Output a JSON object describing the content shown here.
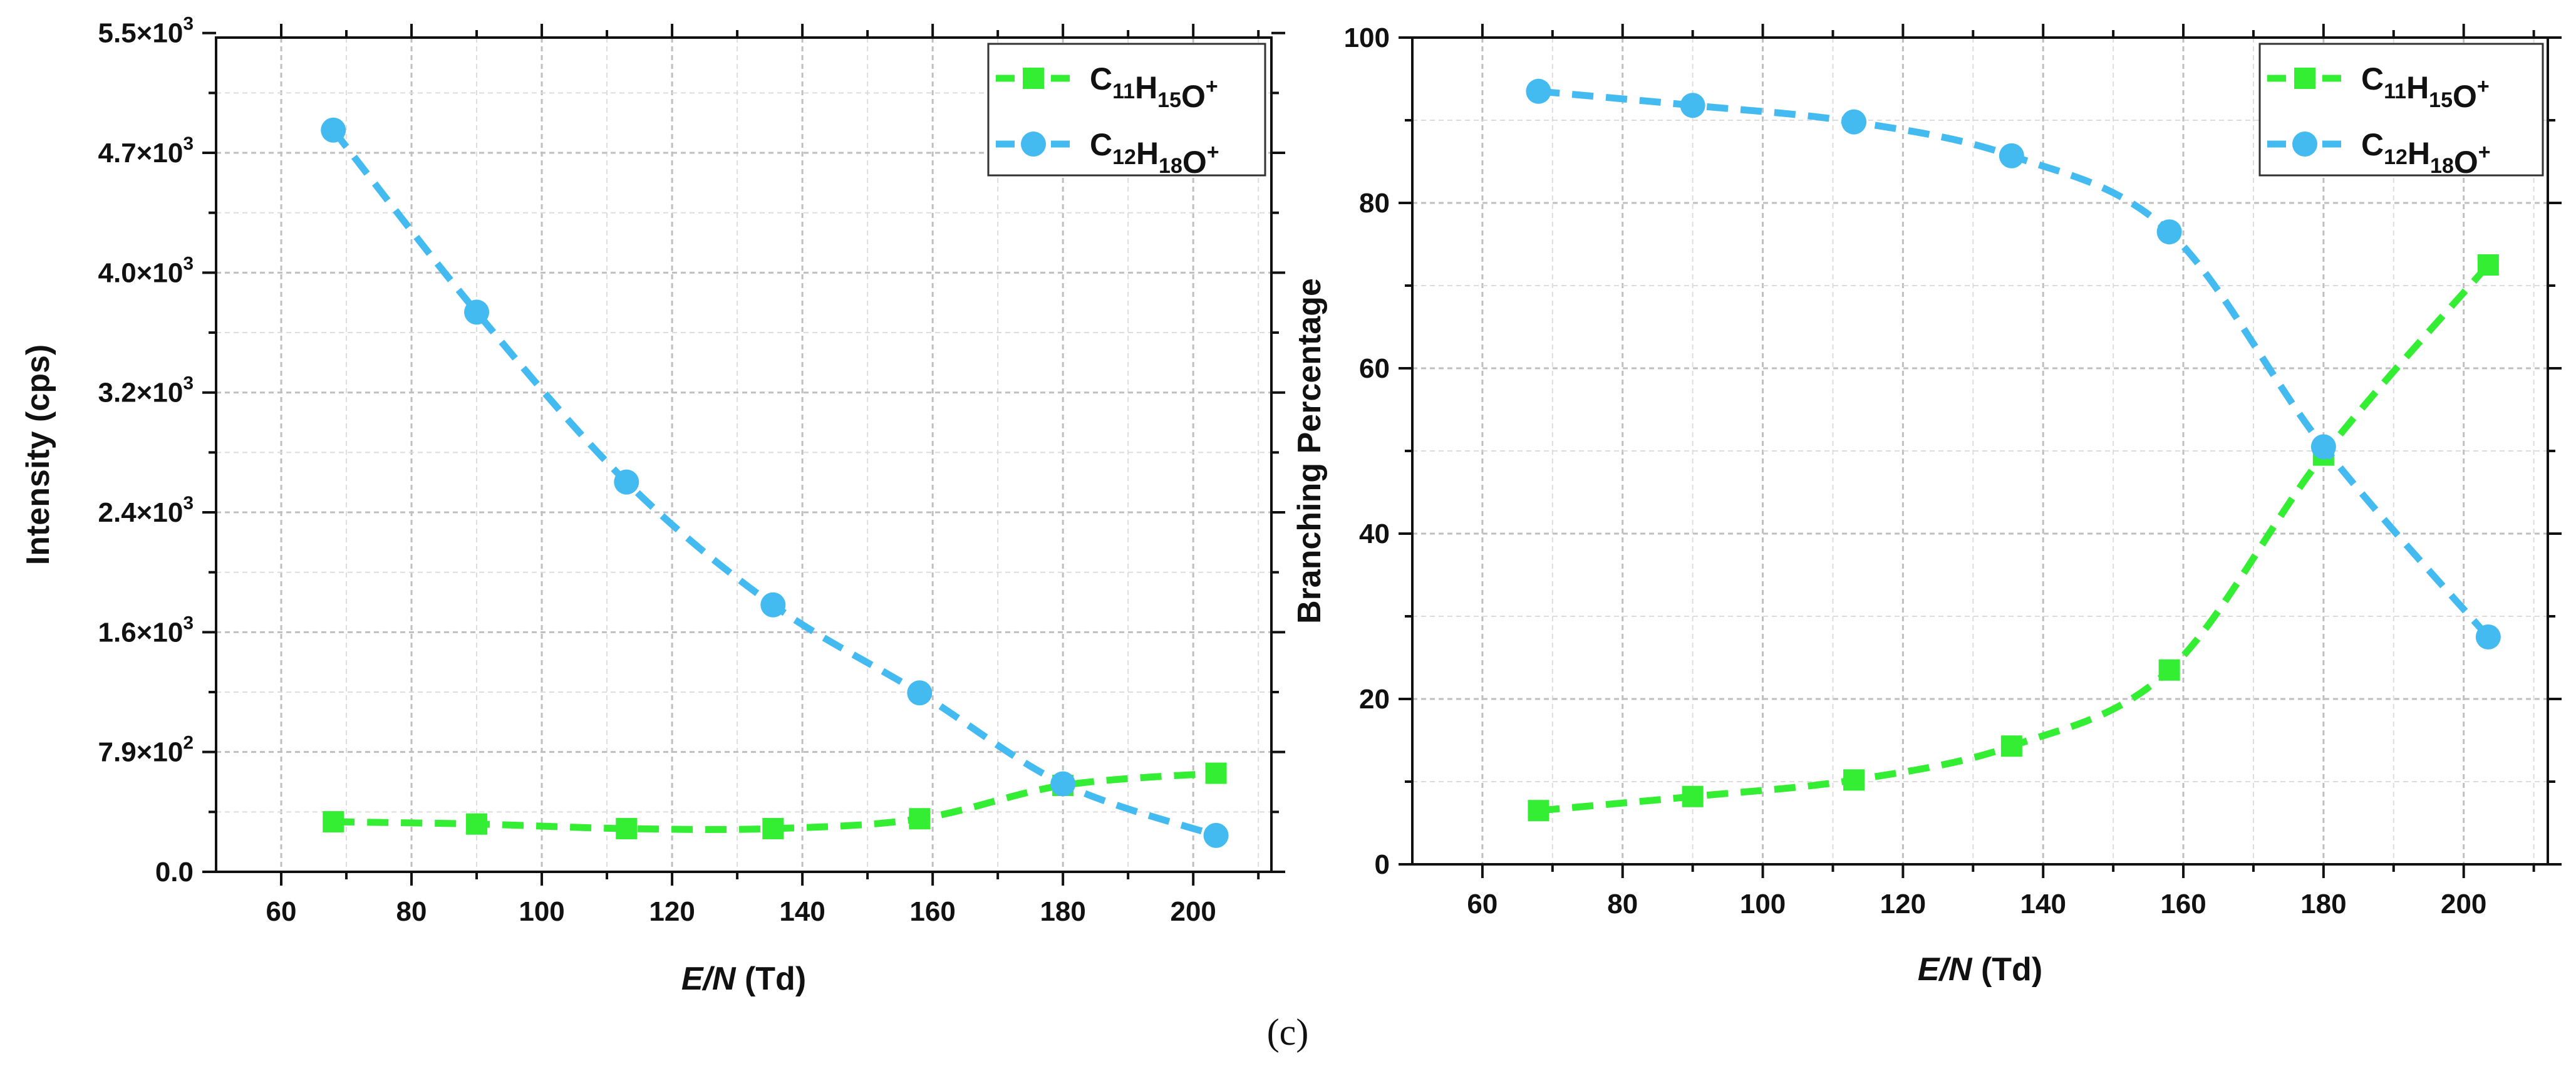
{
  "chart_data": [
    {
      "type": "line",
      "xlabel_italic": "E/N",
      "xlabel_rest": " (Td)",
      "ylabel": "Intensity (cps)",
      "xlim": [
        50,
        212
      ],
      "ylim": [
        0,
        5500
      ],
      "x_ticks": [
        60,
        80,
        100,
        120,
        140,
        160,
        180,
        200
      ],
      "y_ticks": [
        {
          "value": 0,
          "label": "0.0"
        },
        {
          "value": 790,
          "mantissa": "7.9",
          "exponent": "2"
        },
        {
          "value": 1580,
          "mantissa": "1.6",
          "exponent": "3"
        },
        {
          "value": 2370,
          "mantissa": "2.4",
          "exponent": "3"
        },
        {
          "value": 3160,
          "mantissa": "3.2",
          "exponent": "3"
        },
        {
          "value": 3950,
          "mantissa": "4.0",
          "exponent": "3"
        },
        {
          "value": 4740,
          "mantissa": "4.7",
          "exponent": "3"
        },
        {
          "value": 5530,
          "mantissa": "5.5",
          "exponent": "3"
        }
      ],
      "grid": true,
      "legend_position": "top-right",
      "series": [
        {
          "name": "C11H15O+",
          "formula": [
            [
              "C",
              "11"
            ],
            [
              "H",
              "15"
            ],
            [
              "O",
              ""
            ]
          ],
          "charge": "+",
          "marker": "square",
          "color": "#33ee33",
          "x": [
            68,
            90,
            113,
            135.5,
            158,
            180,
            203.5
          ],
          "y": [
            330,
            315,
            285,
            285,
            350,
            570,
            650
          ]
        },
        {
          "name": "C12H18O+",
          "formula": [
            [
              "C",
              "12"
            ],
            [
              "H",
              "18"
            ],
            [
              "O",
              ""
            ]
          ],
          "charge": "+",
          "marker": "circle",
          "color": "#44bbf0",
          "x": [
            68,
            90,
            113,
            135.5,
            158,
            180,
            203.5
          ],
          "y": [
            4890,
            3690,
            2570,
            1760,
            1180,
            580,
            240
          ]
        }
      ]
    },
    {
      "type": "line",
      "xlabel_italic": "E/N",
      "xlabel_rest": " (Td)",
      "ylabel": "Branching Percentage",
      "xlim": [
        50,
        212
      ],
      "ylim": [
        0,
        100
      ],
      "x_ticks": [
        60,
        80,
        100,
        120,
        140,
        160,
        180,
        200
      ],
      "y_ticks": [
        {
          "value": 0,
          "label": "0"
        },
        {
          "value": 20,
          "label": "20"
        },
        {
          "value": 40,
          "label": "40"
        },
        {
          "value": 60,
          "label": "60"
        },
        {
          "value": 80,
          "label": "80"
        },
        {
          "value": 100,
          "label": "100"
        }
      ],
      "grid": true,
      "legend_position": "top-right",
      "series": [
        {
          "name": "C11H15O+",
          "formula": [
            [
              "C",
              "11"
            ],
            [
              "H",
              "15"
            ],
            [
              "O",
              ""
            ]
          ],
          "charge": "+",
          "marker": "square",
          "color": "#33ee33",
          "x": [
            68,
            90,
            113,
            135.5,
            158,
            180,
            203.5
          ],
          "y": [
            6.5,
            8.2,
            10.2,
            14.3,
            23.5,
            49.5,
            72.5
          ]
        },
        {
          "name": "C12H18O+",
          "formula": [
            [
              "C",
              "12"
            ],
            [
              "H",
              "18"
            ],
            [
              "O",
              ""
            ]
          ],
          "charge": "+",
          "marker": "circle",
          "color": "#44bbf0",
          "x": [
            68,
            90,
            113,
            135.5,
            158,
            180,
            203.5
          ],
          "y": [
            93.5,
            91.8,
            89.8,
            85.7,
            76.5,
            50.5,
            27.5
          ]
        }
      ]
    }
  ],
  "caption": "(c)"
}
